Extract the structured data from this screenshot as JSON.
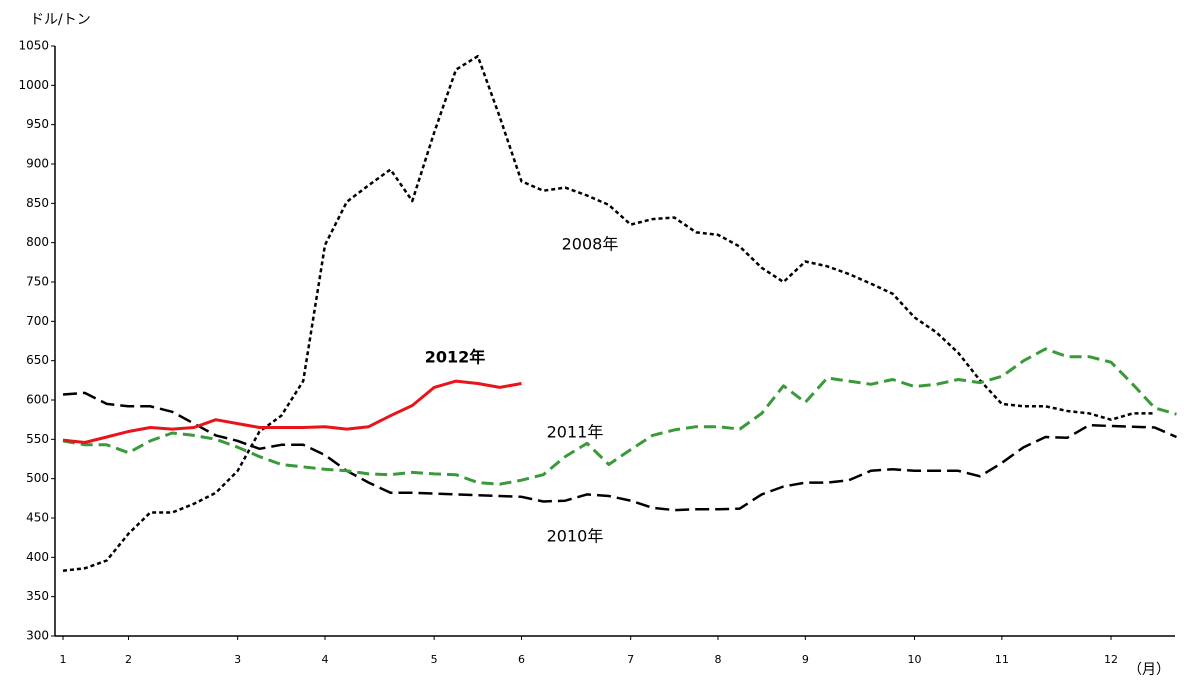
{
  "chart_data": {
    "type": "line",
    "y_unit": "ドル/トン",
    "x_unit": "（月）",
    "categories": [
      "1",
      null,
      null,
      "2",
      null,
      null,
      null,
      null,
      "3",
      null,
      null,
      null,
      "4",
      null,
      null,
      null,
      null,
      "5",
      null,
      null,
      null,
      "6",
      null,
      null,
      null,
      null,
      "7",
      null,
      null,
      null,
      "8",
      null,
      null,
      null,
      "9",
      null,
      null,
      null,
      null,
      "10",
      null,
      null,
      null,
      "11",
      null,
      null,
      null,
      null,
      "12",
      null,
      null,
      null
    ],
    "series": [
      {
        "name": "2008年",
        "color": "#000000",
        "values": [
          383,
          386,
          396,
          430,
          457,
          457,
          468,
          482,
          510,
          560,
          580,
          624,
          797,
          852,
          873,
          893,
          853,
          940,
          1020,
          1037,
          960,
          878,
          866,
          870,
          860,
          848,
          823,
          830,
          832,
          813,
          810,
          795,
          768,
          750,
          776,
          770,
          760,
          748,
          735,
          705,
          686,
          660,
          625,
          595,
          592,
          592,
          586,
          583,
          575,
          583,
          583,
          null
        ]
      },
      {
        "name": "2010年",
        "color": "#000000",
        "values": [
          607,
          609,
          595,
          592,
          592,
          585,
          570,
          555,
          548,
          538,
          543,
          543,
          530,
          510,
          495,
          482,
          482,
          481,
          480,
          479,
          478,
          477,
          471,
          472,
          480,
          478,
          472,
          463,
          460,
          461,
          461,
          462,
          480,
          490,
          495,
          495,
          498,
          510,
          512,
          510,
          510,
          510,
          503,
          520,
          540,
          553,
          552,
          568,
          567,
          566,
          565,
          553
        ]
      },
      {
        "name": "2011年",
        "color": "#3a9a3a",
        "values": [
          548,
          543,
          543,
          533,
          548,
          558,
          555,
          550,
          540,
          528,
          518,
          515,
          512,
          510,
          506,
          505,
          508,
          506,
          505,
          495,
          493,
          498,
          505,
          528,
          545,
          518,
          537,
          555,
          562,
          566,
          566,
          563,
          583,
          618,
          597,
          628,
          624,
          620,
          626,
          617,
          620,
          626,
          622,
          630,
          650,
          665,
          655,
          655,
          648,
          620,
          590,
          582
        ]
      },
      {
        "name": "2012年",
        "color": "#e8141a",
        "values": [
          549,
          546,
          553,
          560,
          565,
          563,
          565,
          575,
          570,
          565,
          565,
          565,
          566,
          563,
          566,
          580,
          593,
          616,
          624,
          621,
          616,
          621,
          null,
          null,
          null,
          null,
          null,
          null,
          null,
          null,
          null,
          null,
          null,
          null,
          null,
          null,
          null,
          null,
          null,
          null,
          null,
          null,
          null,
          null,
          null,
          null,
          null,
          null,
          null,
          null,
          null,
          null
        ]
      }
    ],
    "ylim": [
      300,
      1050
    ],
    "yticks": [
      300,
      350,
      400,
      450,
      500,
      550,
      600,
      650,
      700,
      750,
      800,
      850,
      900,
      950,
      1000,
      1050
    ],
    "grid": false
  }
}
